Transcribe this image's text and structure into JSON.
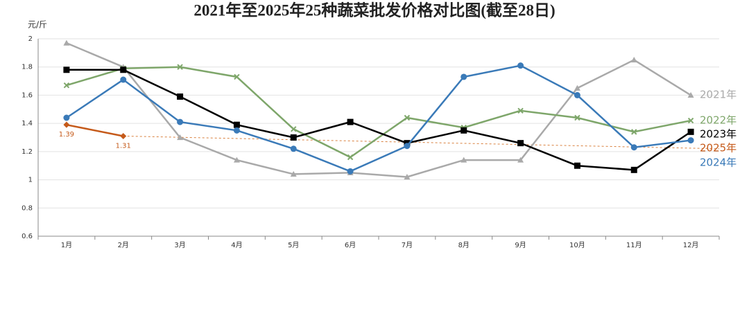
{
  "chart_data": {
    "type": "line",
    "title": "2021年至2025年25种蔬菜批发价格对比图(截至28日)",
    "y_label": "元/斤",
    "categories": [
      "1月",
      "2月",
      "3月",
      "4月",
      "5月",
      "6月",
      "7月",
      "8月",
      "9月",
      "10月",
      "11月",
      "12月"
    ],
    "ylim": [
      0.6,
      2
    ],
    "yticks": [
      0.6,
      0.8,
      1,
      1.2,
      1.4,
      1.6,
      1.8,
      2
    ],
    "grid": true,
    "series": [
      {
        "name": "2021年",
        "color": "#a9a9a9",
        "marker": "triangle",
        "values": [
          1.97,
          1.8,
          1.3,
          1.14,
          1.04,
          1.05,
          1.02,
          1.14,
          1.14,
          1.65,
          1.85,
          1.6
        ]
      },
      {
        "name": "2022年",
        "color": "#7ea66a",
        "marker": "x",
        "values": [
          1.67,
          1.79,
          1.8,
          1.73,
          1.36,
          1.16,
          1.44,
          1.37,
          1.49,
          1.44,
          1.34,
          1.42
        ]
      },
      {
        "name": "2023年",
        "color": "#000000",
        "marker": "square",
        "values": [
          1.78,
          1.78,
          1.59,
          1.39,
          1.3,
          1.41,
          1.26,
          1.35,
          1.26,
          1.1,
          1.07,
          1.34
        ]
      },
      {
        "name": "2024年",
        "color": "#3a7ab8",
        "marker": "circle",
        "values": [
          1.44,
          1.71,
          1.41,
          1.35,
          1.22,
          1.06,
          1.24,
          1.73,
          1.81,
          1.6,
          1.23,
          1.28
        ]
      },
      {
        "name": "2025年",
        "color": "#c55a1a",
        "marker": "diamond",
        "show_labels": true,
        "values": [
          1.39,
          1.31,
          null,
          null,
          null,
          null,
          null,
          null,
          null,
          null,
          null,
          null
        ]
      }
    ],
    "trendline": {
      "color": "#d9803e",
      "values": [
        1.31,
        1.22
      ]
    }
  }
}
